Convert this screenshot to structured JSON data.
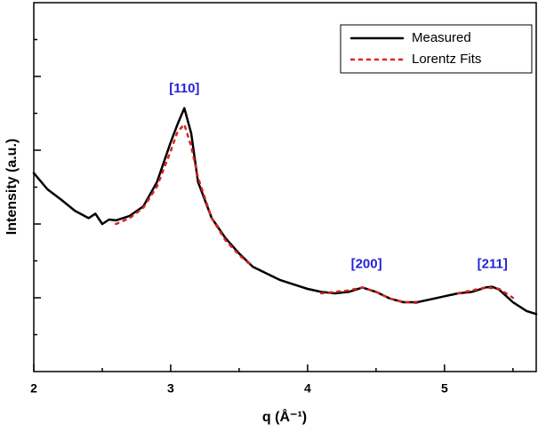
{
  "chart_data": {
    "type": "line",
    "x_label": "q (Å⁻¹)",
    "y_label": "Intensity (a.u.)",
    "xlim": [
      2,
      5.67
    ],
    "xticks": [
      2,
      3,
      4,
      5
    ],
    "xminorticks": [
      2.5,
      3.5,
      4.5,
      5.5
    ],
    "ylim": [
      0,
      5
    ],
    "yticks": [
      1,
      2,
      3,
      4
    ],
    "yminorticks": [
      0.5,
      1.5,
      2.5,
      3.5,
      4.5
    ],
    "legend": "top-right",
    "series": [
      {
        "name": "Measured",
        "color": "#000000",
        "style": "solid",
        "x": [
          2.0,
          2.1,
          2.2,
          2.3,
          2.4,
          2.45,
          2.5,
          2.55,
          2.6,
          2.7,
          2.8,
          2.9,
          3.0,
          3.05,
          3.1,
          3.15,
          3.2,
          3.3,
          3.4,
          3.5,
          3.6,
          3.7,
          3.8,
          3.9,
          4.0,
          4.1,
          4.2,
          4.3,
          4.4,
          4.5,
          4.6,
          4.7,
          4.8,
          4.9,
          5.0,
          5.1,
          5.2,
          5.3,
          5.35,
          5.4,
          5.5,
          5.6,
          5.67
        ],
        "values": [
          2.69,
          2.47,
          2.33,
          2.18,
          2.08,
          2.14,
          2.0,
          2.06,
          2.05,
          2.11,
          2.24,
          2.57,
          3.11,
          3.35,
          3.57,
          3.23,
          2.57,
          2.08,
          1.81,
          1.6,
          1.42,
          1.33,
          1.24,
          1.18,
          1.12,
          1.08,
          1.06,
          1.08,
          1.14,
          1.08,
          0.99,
          0.94,
          0.94,
          0.98,
          1.02,
          1.06,
          1.08,
          1.14,
          1.15,
          1.11,
          0.94,
          0.82,
          0.78
        ]
      },
      {
        "name": "Lorentz Fits",
        "color": "#e02020",
        "style": "dotted",
        "x": [
          2.6,
          2.7,
          2.8,
          2.9,
          3.0,
          3.05,
          3.1,
          3.15,
          3.2,
          3.3,
          3.4,
          3.5,
          3.6,
          3.85,
          4.1,
          4.2,
          4.3,
          4.4,
          4.5,
          4.6,
          4.7,
          4.8,
          4.95,
          5.1,
          5.2,
          5.3,
          5.4,
          5.5
        ],
        "values": [
          2.0,
          2.08,
          2.22,
          2.51,
          2.99,
          3.25,
          3.35,
          3.05,
          2.63,
          2.08,
          1.78,
          1.58,
          1.42,
          null,
          1.06,
          1.08,
          1.1,
          1.14,
          1.08,
          0.99,
          0.94,
          0.93,
          null,
          1.06,
          1.1,
          1.14,
          1.12,
          1.0
        ]
      }
    ],
    "annotations": [
      {
        "text": "[110]",
        "x": 3.1,
        "y": 3.83
      },
      {
        "text": "[200]",
        "x": 4.43,
        "y": 1.45
      },
      {
        "text": "[211]",
        "x": 5.35,
        "y": 1.45
      }
    ]
  }
}
